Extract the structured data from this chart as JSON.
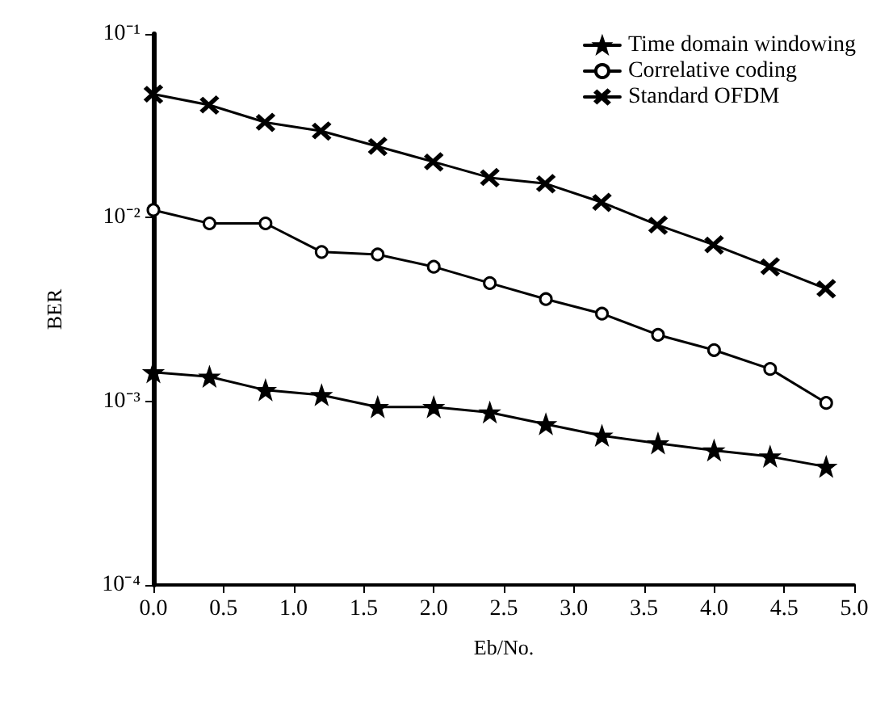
{
  "chart_data": {
    "type": "line",
    "xlabel": "Eb/No.",
    "ylabel": "BER",
    "log": "y",
    "grid": false,
    "legend": "top right",
    "line_style": "solid",
    "x": [
      0,
      0.4,
      0.8,
      1.2,
      1.6,
      2.0,
      2.4,
      2.8,
      3.2,
      3.6,
      4.0,
      4.4,
      4.8
    ],
    "xlim": [
      0,
      5
    ],
    "xticks": [
      {
        "value": 0,
        "label": "0.0"
      },
      {
        "value": 0.5,
        "label": "0.5"
      },
      {
        "value": 1,
        "label": "1.0"
      },
      {
        "value": 1.5,
        "label": "1.5"
      },
      {
        "value": 2,
        "label": "2.0"
      },
      {
        "value": 2.5,
        "label": "2.5"
      },
      {
        "value": 3,
        "label": "3.0"
      },
      {
        "value": 3.5,
        "label": "3.5"
      },
      {
        "value": 4,
        "label": "4.0"
      },
      {
        "value": 4.5,
        "label": "4.5"
      },
      {
        "value": 5,
        "label": "5.0"
      }
    ],
    "ylim": [
      0.0001,
      0.1
    ],
    "yticks": [
      {
        "value": 0.0001,
        "label": "10⁻⁴"
      },
      {
        "value": 0.001,
        "label": "10⁻³"
      },
      {
        "value": 0.01,
        "label": "10⁻²"
      },
      {
        "value": 0.1,
        "label": "10⁻¹"
      }
    ],
    "series": [
      {
        "name": "Time domain windowing",
        "color": "#000000",
        "marker": "star",
        "values": [
          0.00144,
          0.00136,
          0.00115,
          0.00108,
          0.00093,
          0.00093,
          0.00087,
          0.00075,
          0.00065,
          0.00059,
          0.00054,
          0.0005,
          0.00044
        ]
      },
      {
        "name": "Correlative coding",
        "color": "#000000",
        "marker": "circle",
        "values": [
          0.011,
          0.0093,
          0.0093,
          0.0065,
          0.0063,
          0.0054,
          0.0044,
          0.0036,
          0.003,
          0.0023,
          0.0019,
          0.0015,
          0.00098
        ]
      },
      {
        "name": "Standard OFDM",
        "color": "#000000",
        "marker": "cross",
        "values": [
          0.047,
          0.041,
          0.033,
          0.0296,
          0.0244,
          0.0201,
          0.0165,
          0.0153,
          0.0121,
          0.0091,
          0.0071,
          0.0054,
          0.0041
        ]
      }
    ]
  }
}
